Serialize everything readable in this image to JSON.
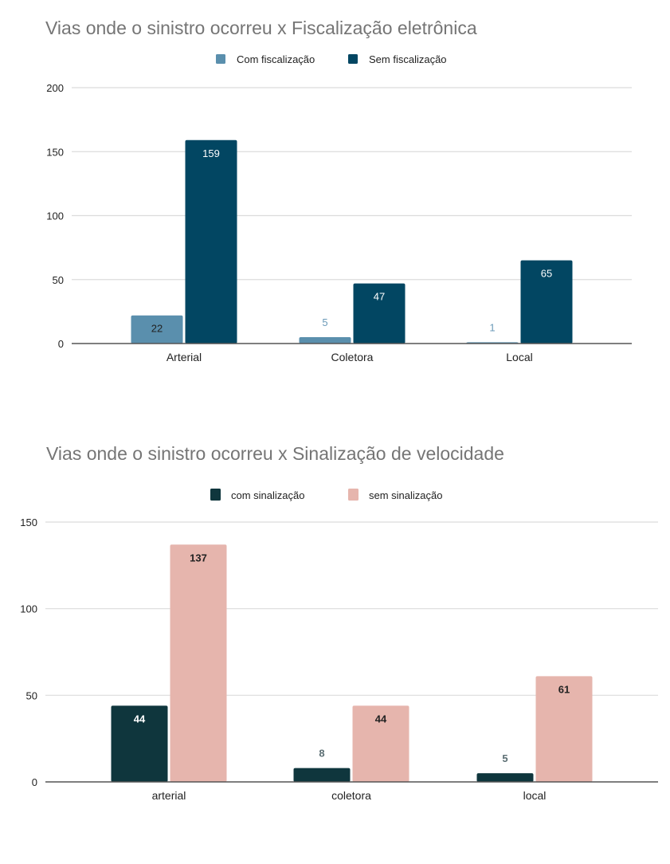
{
  "chart_data": [
    {
      "type": "bar",
      "title": "Vias onde o sinistro ocorreu x Fiscalização eletrônica",
      "xlabel": "",
      "ylabel": "",
      "categories": [
        "Arterial",
        "Coletora",
        "Local"
      ],
      "series": [
        {
          "name": "Com fiscalização",
          "color": "#5a8fad",
          "values": [
            22,
            5,
            1
          ]
        },
        {
          "name": "Sem fiscalização",
          "color": "#024662",
          "values": [
            159,
            47,
            65
          ]
        }
      ],
      "ylim": [
        0,
        200
      ],
      "yticks": [
        0,
        50,
        100,
        150,
        200
      ],
      "grid": true,
      "legend": "top-center",
      "data_labels": true
    },
    {
      "type": "bar",
      "title": "Vias onde o sinistro ocorreu x Sinalização de velocidade",
      "xlabel": "",
      "ylabel": "",
      "categories": [
        "arterial",
        "coletora",
        "local"
      ],
      "series": [
        {
          "name": "com sinalização",
          "color": "#0f363d",
          "values": [
            44,
            8,
            5
          ]
        },
        {
          "name": "sem sinalização",
          "color": "#e6b5ad",
          "values": [
            137,
            44,
            61
          ]
        }
      ],
      "ylim": [
        0,
        150
      ],
      "yticks": [
        0,
        50,
        100,
        150
      ],
      "grid": true,
      "legend": "top-center",
      "data_labels": true
    }
  ]
}
